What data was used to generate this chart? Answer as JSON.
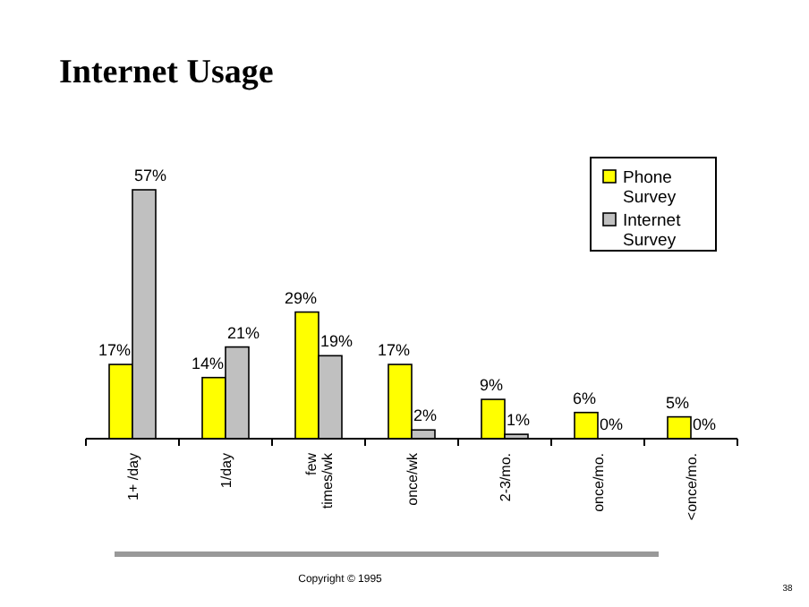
{
  "chart_data": {
    "type": "bar",
    "title": "Internet Usage",
    "categories": [
      "1+ /day",
      "1/day",
      "few times/wk",
      "once/wk",
      "2-3/mo.",
      "once/mo.",
      "<once/mo."
    ],
    "series": [
      {
        "name": "Phone Survey",
        "color": "#ffff00",
        "values": [
          17,
          14,
          29,
          17,
          9,
          6,
          5
        ],
        "value_labels": [
          "17%",
          "14%",
          "29%",
          "17%",
          "9%",
          "6%",
          "5%"
        ]
      },
      {
        "name": "Internet Survey",
        "color": "#c0c0c0",
        "values": [
          57,
          21,
          19,
          2,
          1,
          0,
          0
        ],
        "value_labels": [
          "57%",
          "21%",
          "19%",
          "2%",
          "1%",
          "0%",
          "0%"
        ]
      }
    ],
    "legend": "top right",
    "annotations": [
      "Copyright © 1995",
      "38"
    ]
  }
}
